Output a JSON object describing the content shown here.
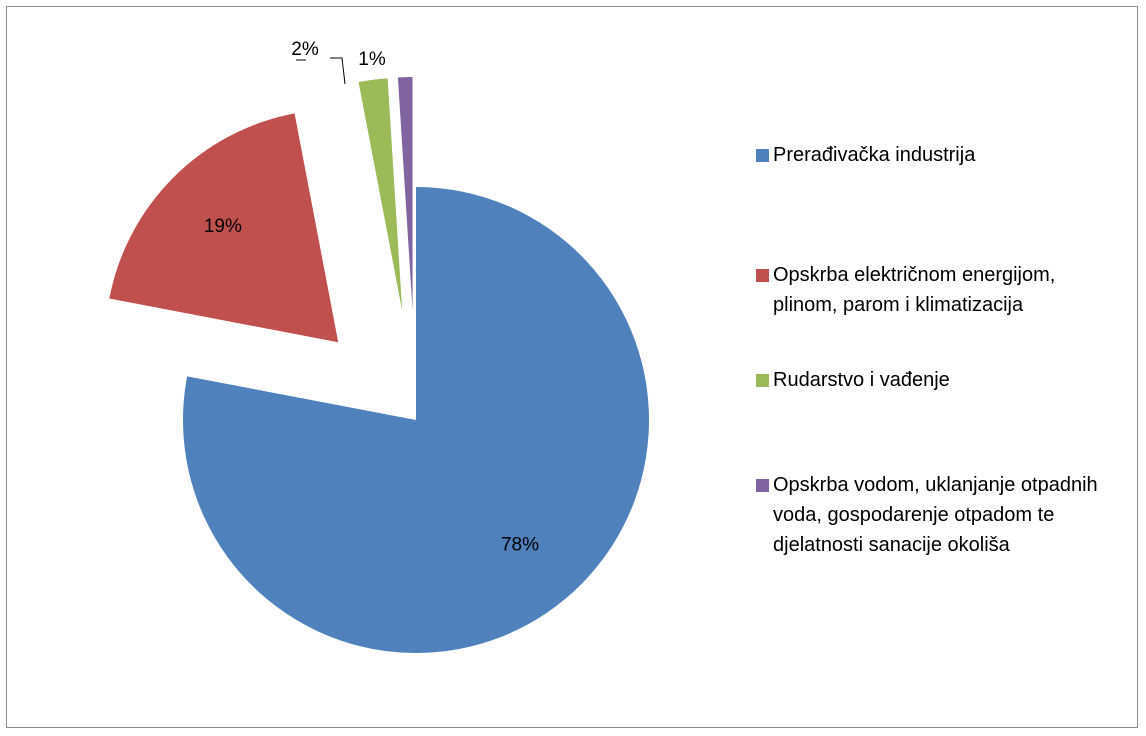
{
  "chart_data": {
    "type": "pie",
    "categories": [
      "Prerađivačka industrija",
      "Opskrba električnom energijom, plinom, parom i klimatizacija",
      "Rudarstvo i vađenje",
      "Opskrba vodom, uklanjanje otpadnih voda, gospodarenje otpadom te djelatnosti sanacije okoliša"
    ],
    "values": [
      78,
      19,
      2,
      1
    ],
    "value_labels": [
      "78%",
      "19%",
      "2%",
      "1%"
    ],
    "colors": [
      "#4f81bd",
      "#c0504d",
      "#9bbb59",
      "#8064a2"
    ],
    "legend": "right"
  }
}
